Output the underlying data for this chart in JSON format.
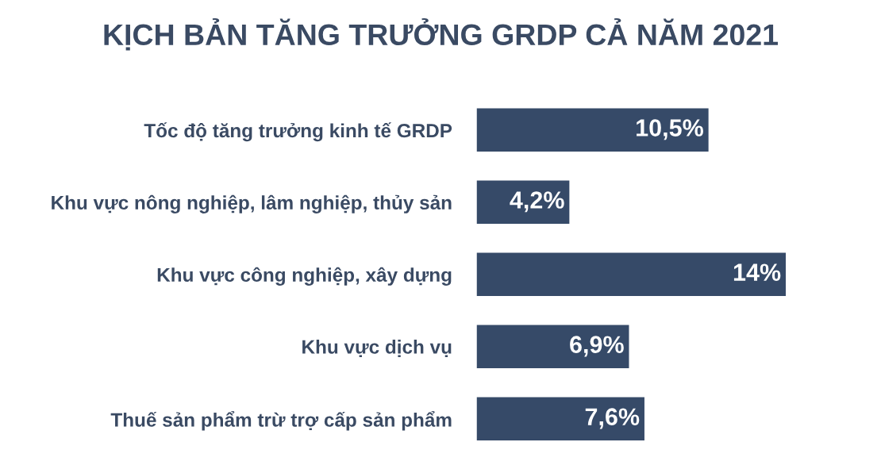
{
  "chart_data": {
    "type": "bar",
    "orientation": "horizontal",
    "title": "KỊCH BẢN TĂNG TRƯỞNG GRDP CẢ NĂM 2021",
    "categories": [
      "Tốc độ tăng trưởng kinh tế GRDP",
      "Khu vực nông nghiệp, lâm nghiệp, thủy sản",
      "Khu vực công nghiệp, xây dựng",
      "Khu vực dịch vụ",
      "Thuế sản phẩm trừ trợ cấp sản phẩm"
    ],
    "values": [
      10.5,
      4.2,
      14,
      6.9,
      7.6
    ],
    "value_labels": [
      "10,5%",
      "4,2%",
      "14%",
      "6,9%",
      "7,6%"
    ],
    "color": "#364a68",
    "grid": false,
    "legend": false,
    "tick_labels": "y"
  }
}
